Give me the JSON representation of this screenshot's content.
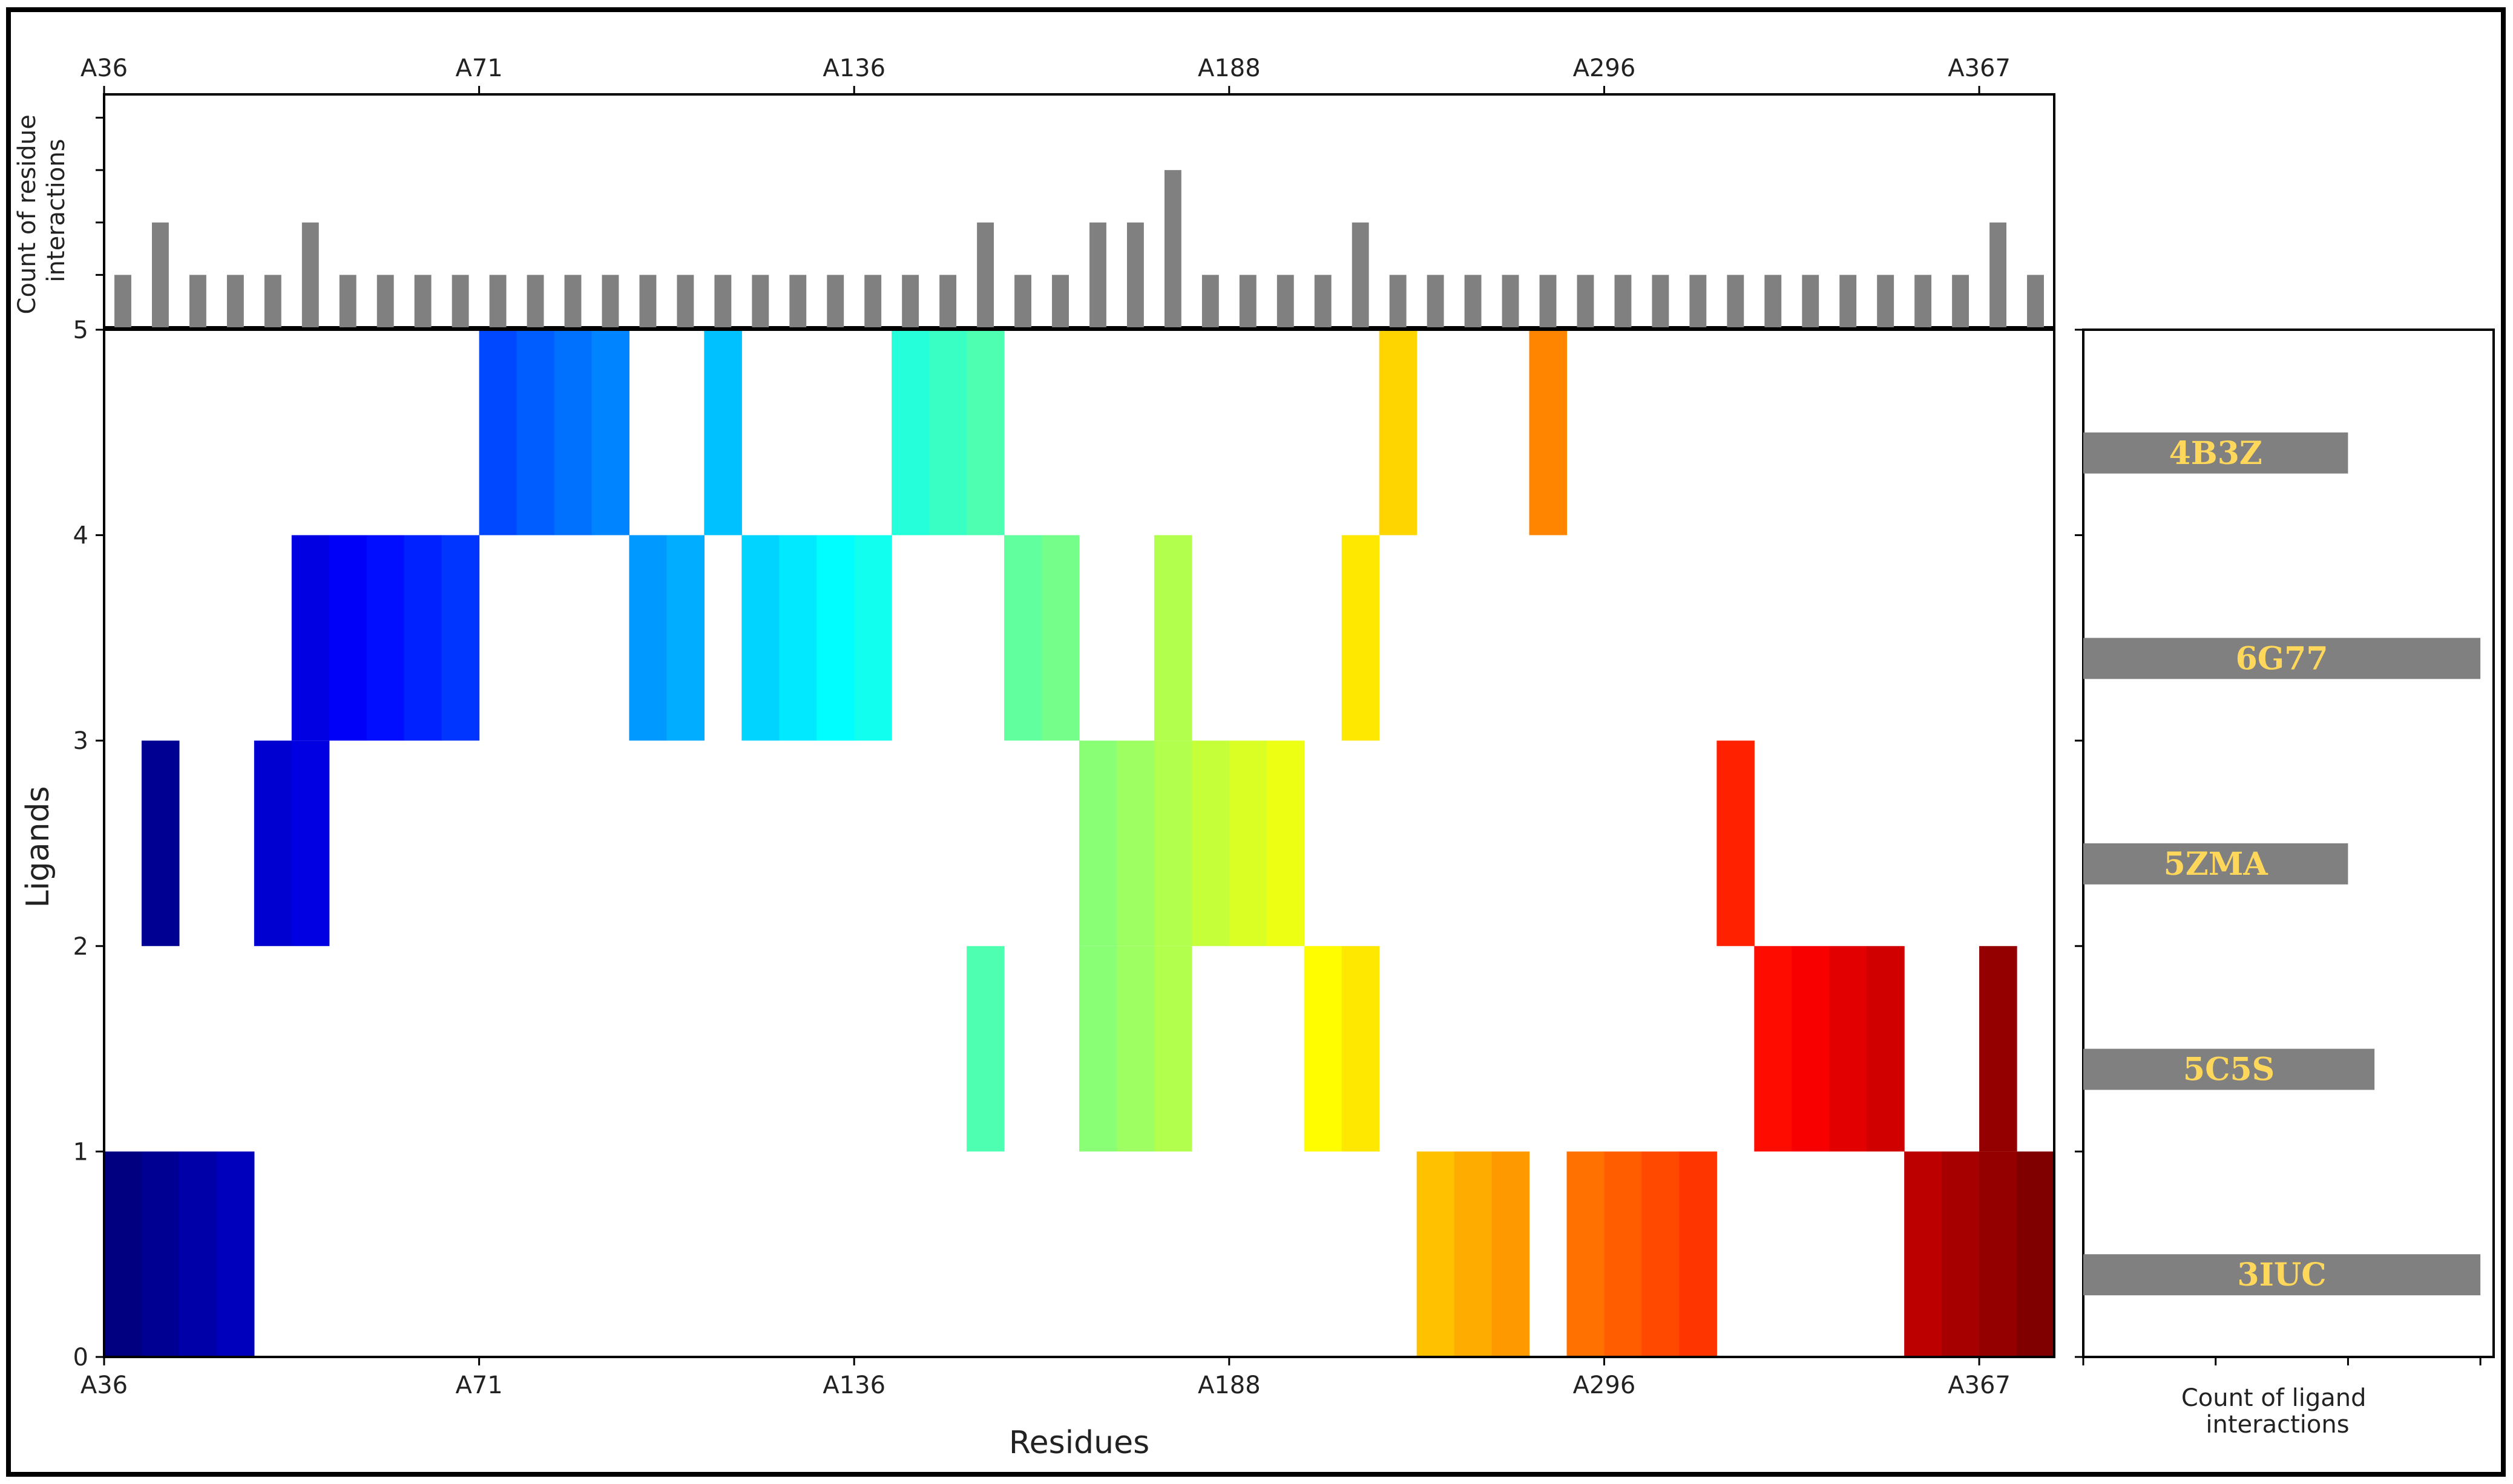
{
  "chart_data": [
    {
      "type": "heatmap",
      "xlabel": "Residues",
      "ylabel": "Ligands",
      "x_tick_labels": [
        "A36",
        "A71",
        "A136",
        "A188",
        "A296",
        "A367"
      ],
      "x_tick_positions": [
        0,
        10,
        20,
        30,
        40,
        50
      ],
      "n_columns": 52,
      "yticks": [
        0,
        1,
        2,
        3,
        4,
        5
      ],
      "ylim": [
        0,
        5
      ],
      "colormap": "jet",
      "rows": [
        {
          "row": 0,
          "columns": [
            0,
            1,
            2,
            3,
            35,
            36,
            37,
            39,
            40,
            41,
            42,
            48,
            49,
            50,
            51
          ]
        },
        {
          "row": 1,
          "columns": [
            23,
            26,
            27,
            28,
            32,
            33,
            44,
            45,
            46,
            47,
            50
          ]
        },
        {
          "row": 2,
          "columns": [
            1,
            4,
            5,
            26,
            27,
            28,
            29,
            30,
            31,
            43
          ]
        },
        {
          "row": 3,
          "columns": [
            5,
            6,
            7,
            8,
            9,
            14,
            15,
            17,
            18,
            19,
            20,
            24,
            25,
            28,
            33
          ]
        },
        {
          "row": 4,
          "columns": [
            10,
            11,
            12,
            13,
            16,
            21,
            22,
            23,
            34,
            38
          ]
        }
      ]
    },
    {
      "type": "bar",
      "ylabel": "Count of residue\ninteractions",
      "values": [
        1,
        2,
        1,
        1,
        1,
        2,
        1,
        1,
        1,
        1,
        1,
        1,
        1,
        1,
        1,
        1,
        1,
        1,
        1,
        1,
        1,
        1,
        1,
        2,
        1,
        1,
        2,
        2,
        3,
        1,
        1,
        1,
        1,
        2,
        1,
        1,
        1,
        1,
        1,
        1,
        1,
        1,
        1,
        1,
        1,
        1,
        1,
        1,
        1,
        1,
        2,
        1
      ],
      "ylim": [
        0,
        4
      ],
      "color": "#808080"
    },
    {
      "type": "bar",
      "orientation": "horizontal",
      "xlabel": "Count of ligand\ninteractions",
      "categories": [
        "3IUC",
        "5C5S",
        "5ZMA",
        "6G77",
        "4B3Z"
      ],
      "values": [
        15,
        11,
        10,
        15,
        10
      ],
      "xlim": [
        0,
        15.5
      ],
      "color": "#808080",
      "label_color": "#ffd75a"
    }
  ]
}
